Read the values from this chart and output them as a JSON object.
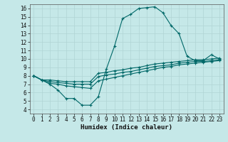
{
  "xlabel": "Humidex (Indice chaleur)",
  "bg_color": "#c5e8e8",
  "grid_color": "#b0d4d4",
  "line_color": "#006868",
  "xlim": [
    -0.5,
    23.5
  ],
  "ylim": [
    3.5,
    16.5
  ],
  "xticks": [
    0,
    1,
    2,
    3,
    4,
    5,
    6,
    7,
    8,
    9,
    10,
    11,
    12,
    13,
    14,
    15,
    16,
    17,
    18,
    19,
    20,
    21,
    22,
    23
  ],
  "yticks": [
    4,
    5,
    6,
    7,
    8,
    9,
    10,
    11,
    12,
    13,
    14,
    15,
    16
  ],
  "line1_x": [
    0,
    1,
    2,
    3,
    4,
    5,
    6,
    7,
    8,
    9,
    10,
    11,
    12,
    13,
    14,
    15,
    16,
    17,
    18,
    19,
    20,
    21,
    22,
    23
  ],
  "line1_y": [
    8.0,
    7.5,
    7.0,
    6.3,
    5.3,
    5.3,
    4.5,
    4.5,
    5.5,
    8.8,
    11.5,
    14.8,
    15.3,
    16.0,
    16.1,
    16.2,
    15.5,
    14.0,
    13.0,
    10.3,
    9.8,
    9.8,
    10.5,
    10.0
  ],
  "line2_x": [
    0,
    1,
    2,
    3,
    4,
    5,
    6,
    7,
    8,
    9,
    10,
    11,
    12,
    13,
    14,
    15,
    16,
    17,
    18,
    19,
    20,
    21,
    22,
    23
  ],
  "line2_y": [
    8.0,
    7.5,
    7.5,
    7.4,
    7.3,
    7.3,
    7.3,
    7.3,
    8.3,
    8.4,
    8.6,
    8.7,
    8.9,
    9.0,
    9.2,
    9.4,
    9.5,
    9.6,
    9.7,
    9.8,
    9.9,
    9.9,
    10.0,
    10.1
  ],
  "line3_x": [
    0,
    1,
    2,
    3,
    4,
    5,
    6,
    7,
    8,
    9,
    10,
    11,
    12,
    13,
    14,
    15,
    16,
    17,
    18,
    19,
    20,
    21,
    22,
    23
  ],
  "line3_y": [
    8.0,
    7.5,
    7.3,
    7.2,
    7.1,
    7.0,
    7.0,
    7.0,
    7.9,
    8.1,
    8.2,
    8.4,
    8.5,
    8.7,
    8.9,
    9.1,
    9.2,
    9.3,
    9.5,
    9.6,
    9.7,
    9.7,
    9.8,
    9.9
  ],
  "line4_x": [
    0,
    1,
    2,
    3,
    4,
    5,
    6,
    7,
    8,
    9,
    10,
    11,
    12,
    13,
    14,
    15,
    16,
    17,
    18,
    19,
    20,
    21,
    22,
    23
  ],
  "line4_y": [
    8.0,
    7.5,
    7.1,
    7.0,
    6.8,
    6.7,
    6.6,
    6.5,
    7.4,
    7.6,
    7.8,
    8.0,
    8.2,
    8.4,
    8.6,
    8.8,
    9.0,
    9.1,
    9.3,
    9.4,
    9.5,
    9.6,
    9.7,
    9.8
  ]
}
